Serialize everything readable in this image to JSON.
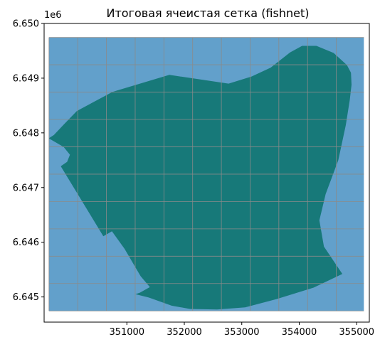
{
  "chart_data": {
    "type": "map",
    "title": "Итоговая ячеистая сетка (fishnet)",
    "y_offset_label": "1e6",
    "xlim": [
      349560,
      355220
    ],
    "ylim": [
      6644540,
      6650000
    ],
    "x_ticks": [
      351000,
      352000,
      353000,
      354000,
      355000
    ],
    "x_tick_labels": [
      "351000",
      "352000",
      "353000",
      "354000",
      "355000"
    ],
    "y_ticks": [
      6645000,
      6646000,
      6647000,
      6648000,
      6649000,
      6650000
    ],
    "y_tick_labels": [
      "6.645",
      "6.646",
      "6.647",
      "6.648",
      "6.649",
      "6.650"
    ],
    "grid_extent": {
      "xmin": 349645,
      "xmax": 355125,
      "ymin": 6644745,
      "ymax": 6649745
    },
    "grid_cell_size": 500,
    "colors": {
      "grid_fill": "#62a0cb",
      "grid_line": "#8a8a8a",
      "polygon_fill": "#177979"
    },
    "polygon": [
      [
        349640,
        6647900
      ],
      [
        349730,
        6647960
      ],
      [
        349900,
        6648150
      ],
      [
        350130,
        6648400
      ],
      [
        350750,
        6648750
      ],
      [
        351740,
        6649060
      ],
      [
        352770,
        6648900
      ],
      [
        353170,
        6649030
      ],
      [
        353500,
        6649190
      ],
      [
        353840,
        6649470
      ],
      [
        354050,
        6649590
      ],
      [
        354300,
        6649590
      ],
      [
        354600,
        6649460
      ],
      [
        354830,
        6649240
      ],
      [
        354900,
        6649100
      ],
      [
        354910,
        6648880
      ],
      [
        354880,
        6648600
      ],
      [
        354810,
        6648140
      ],
      [
        354680,
        6647500
      ],
      [
        354460,
        6646880
      ],
      [
        354350,
        6646400
      ],
      [
        354430,
        6645920
      ],
      [
        354750,
        6645420
      ],
      [
        354250,
        6645170
      ],
      [
        353600,
        6644960
      ],
      [
        353060,
        6644810
      ],
      [
        352570,
        6644770
      ],
      [
        352100,
        6644780
      ],
      [
        351780,
        6644840
      ],
      [
        351380,
        6644990
      ],
      [
        351150,
        6645050
      ],
      [
        351230,
        6645080
      ],
      [
        351400,
        6645180
      ],
      [
        351240,
        6645380
      ],
      [
        350960,
        6645880
      ],
      [
        350740,
        6646200
      ],
      [
        350590,
        6646110
      ],
      [
        349850,
        6647390
      ],
      [
        349960,
        6647470
      ],
      [
        350010,
        6647600
      ],
      [
        349900,
        6647740
      ]
    ]
  }
}
